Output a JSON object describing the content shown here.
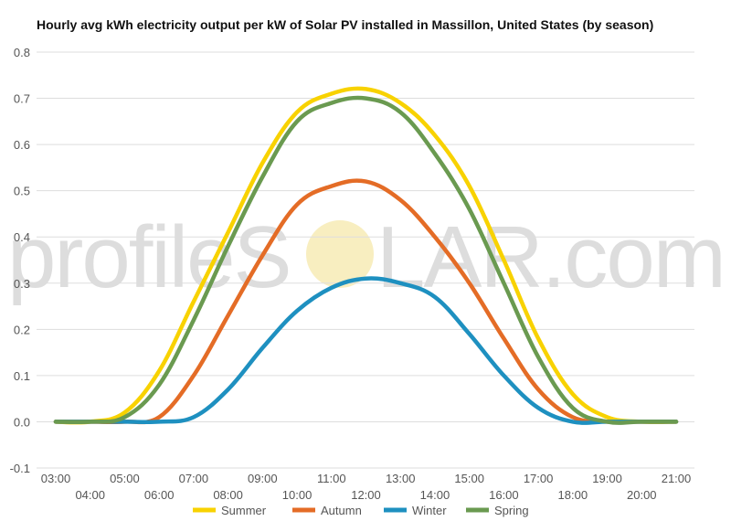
{
  "chart_data": {
    "type": "line",
    "title": "Hourly avg kWh electricity output per kW of Solar PV installed in Massillon, United States (by season)",
    "xlabel": "",
    "ylabel": "",
    "ylim": [
      -0.1,
      0.8
    ],
    "yticks": [
      -0.1,
      0.0,
      0.1,
      0.2,
      0.3,
      0.4,
      0.5,
      0.6,
      0.7,
      0.8
    ],
    "ytick_labels": [
      "-0.1",
      "0.0",
      "0.1",
      "0.2",
      "0.3",
      "0.4",
      "0.5",
      "0.6",
      "0.7",
      "0.8"
    ],
    "categories": [
      "03:00",
      "04:00",
      "05:00",
      "06:00",
      "07:00",
      "08:00",
      "09:00",
      "10:00",
      "11:00",
      "12:00",
      "13:00",
      "14:00",
      "15:00",
      "16:00",
      "17:00",
      "18:00",
      "19:00",
      "20:00",
      "21:00"
    ],
    "grid": true,
    "legend_position": "bottom",
    "series": [
      {
        "name": "Summer",
        "color": "#f8d200",
        "values": [
          0.0,
          0.0,
          0.02,
          0.11,
          0.26,
          0.41,
          0.56,
          0.67,
          0.71,
          0.72,
          0.69,
          0.62,
          0.51,
          0.35,
          0.18,
          0.06,
          0.01,
          0.0,
          0.0
        ]
      },
      {
        "name": "Autumn",
        "color": "#e46c26",
        "values": [
          0.0,
          0.0,
          0.0,
          0.01,
          0.1,
          0.23,
          0.36,
          0.47,
          0.51,
          0.52,
          0.48,
          0.4,
          0.3,
          0.18,
          0.07,
          0.01,
          0.0,
          0.0,
          0.0
        ]
      },
      {
        "name": "Winter",
        "color": "#1e90c0",
        "values": [
          0.0,
          0.0,
          0.0,
          0.0,
          0.01,
          0.07,
          0.16,
          0.24,
          0.29,
          0.31,
          0.3,
          0.27,
          0.19,
          0.1,
          0.03,
          0.0,
          0.0,
          0.0,
          0.0
        ]
      },
      {
        "name": "Spring",
        "color": "#6a9a50",
        "values": [
          0.0,
          0.0,
          0.01,
          0.08,
          0.22,
          0.38,
          0.53,
          0.65,
          0.69,
          0.7,
          0.67,
          0.58,
          0.46,
          0.3,
          0.14,
          0.03,
          0.0,
          0.0,
          0.0
        ]
      }
    ]
  },
  "watermark": {
    "text_left": "profileS",
    "text_right": "LAR.com",
    "sun_color": "#f8eec0"
  }
}
